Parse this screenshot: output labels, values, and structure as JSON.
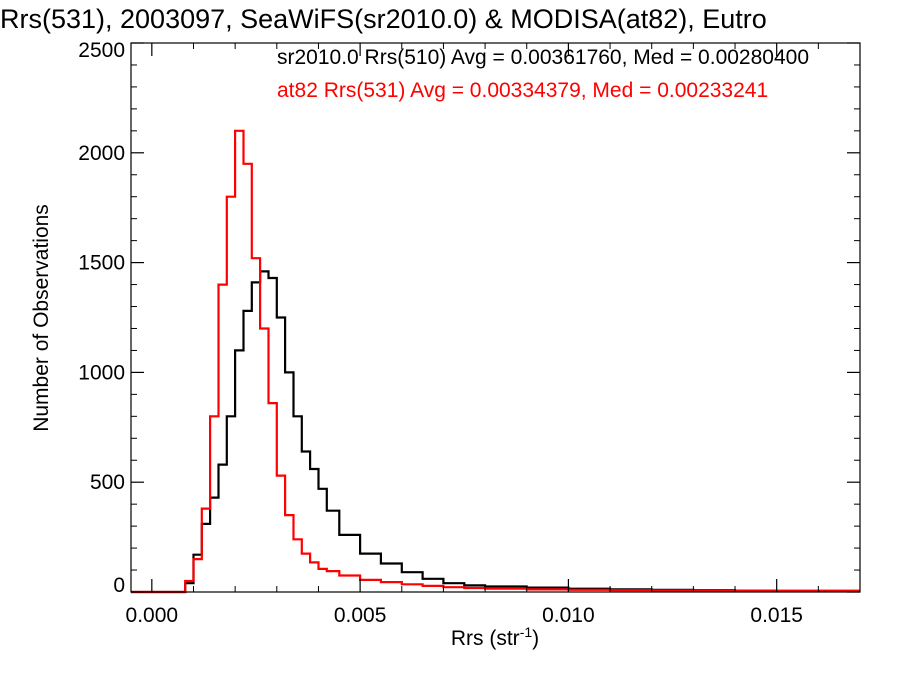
{
  "chart_data": {
    "type": "line",
    "step": true,
    "title": "Rrs(531), 2003097, SeaWiFS(sr2010.0) & MODISA(at82), Eutro",
    "xlabel": "Rrs (str",
    "xlabel_sup": "-1",
    "xlabel_close": ")",
    "ylabel": "Number of Observations",
    "xlim": [
      -0.0005,
      0.017
    ],
    "ylim": [
      0,
      2500
    ],
    "x_ticks": [
      0.0,
      0.005,
      0.01,
      0.015
    ],
    "x_tick_labels": [
      "0.000",
      "0.005",
      "0.010",
      "0.015"
    ],
    "y_ticks": [
      0,
      500,
      1000,
      1500,
      2000,
      2500
    ],
    "y_tick_labels": [
      "0",
      "500",
      "1000",
      "1500",
      "2000",
      "2500"
    ],
    "grid": false,
    "legend_position": "top-right",
    "series": [
      {
        "name": "sr2010.0 Rrs(510) Avg = 0.00361760, Med = 0.00280400",
        "color": "#000000",
        "x": [
          -0.0005,
          0.0005,
          0.0008,
          0.001,
          0.0012,
          0.0014,
          0.0016,
          0.0018,
          0.002,
          0.0022,
          0.0024,
          0.0026,
          0.0028,
          0.003,
          0.0032,
          0.0034,
          0.0036,
          0.0038,
          0.004,
          0.0042,
          0.0045,
          0.005,
          0.0055,
          0.006,
          0.0065,
          0.007,
          0.0075,
          0.008,
          0.009,
          0.01,
          0.011,
          0.012,
          0.013,
          0.014,
          0.015,
          0.016,
          0.017
        ],
        "y": [
          0,
          0,
          40,
          170,
          310,
          430,
          580,
          800,
          1100,
          1280,
          1410,
          1460,
          1430,
          1250,
          1000,
          800,
          640,
          560,
          470,
          370,
          260,
          175,
          130,
          90,
          60,
          40,
          30,
          25,
          20,
          15,
          12,
          10,
          8,
          6,
          5,
          5,
          5
        ]
      },
      {
        "name": "at82 Rrs(531) Avg = 0.00334379, Med = 0.00233241",
        "color": "#ff0000",
        "x": [
          -0.0005,
          0.0005,
          0.0008,
          0.001,
          0.0012,
          0.0014,
          0.0016,
          0.0018,
          0.002,
          0.0022,
          0.0024,
          0.0026,
          0.0028,
          0.003,
          0.0032,
          0.0034,
          0.0036,
          0.0038,
          0.004,
          0.0042,
          0.0045,
          0.005,
          0.0055,
          0.006,
          0.0065,
          0.007,
          0.0075,
          0.008,
          0.009,
          0.01,
          0.011,
          0.012,
          0.013,
          0.014,
          0.015,
          0.016,
          0.017
        ],
        "y": [
          0,
          0,
          50,
          150,
          380,
          800,
          1400,
          1800,
          2100,
          1950,
          1520,
          1200,
          860,
          530,
          350,
          240,
          175,
          135,
          105,
          95,
          75,
          55,
          45,
          35,
          28,
          22,
          18,
          15,
          12,
          10,
          8,
          7,
          6,
          5,
          5,
          5,
          5
        ]
      }
    ]
  }
}
